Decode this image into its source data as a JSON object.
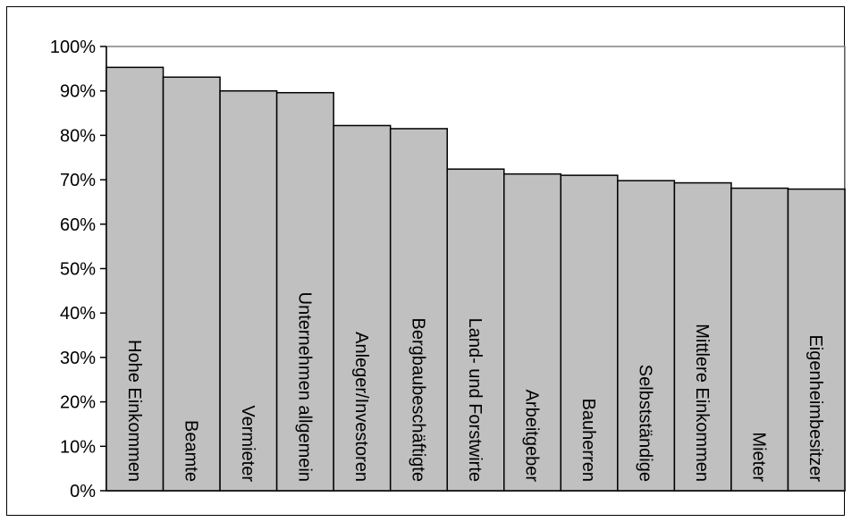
{
  "chart_data": {
    "type": "bar",
    "title": "",
    "xlabel": "",
    "ylabel": "",
    "ylim": [
      0,
      100
    ],
    "yticks": [
      "0%",
      "10%",
      "20%",
      "30%",
      "40%",
      "50%",
      "60%",
      "70%",
      "80%",
      "90%",
      "100%"
    ],
    "categories": [
      "Hohe Einkommen",
      "Beamte",
      "Vermieter",
      "Unternehmen allgemein",
      "Anleger/Investoren",
      "Bergbaubeschäftigte",
      "Land- und Forstwirte",
      "Arbeitgeber",
      "Bauherren",
      "Selbstständige",
      "Mittlere Einkommen",
      "Mieter",
      "Eigenheimbesitzer"
    ],
    "values": [
      95.3,
      93.1,
      90.0,
      89.6,
      82.2,
      81.5,
      72.4,
      71.3,
      71.0,
      69.8,
      69.3,
      68.1,
      67.9
    ],
    "bar_color": "#c0c0c0",
    "grid": false,
    "legend": "none"
  }
}
